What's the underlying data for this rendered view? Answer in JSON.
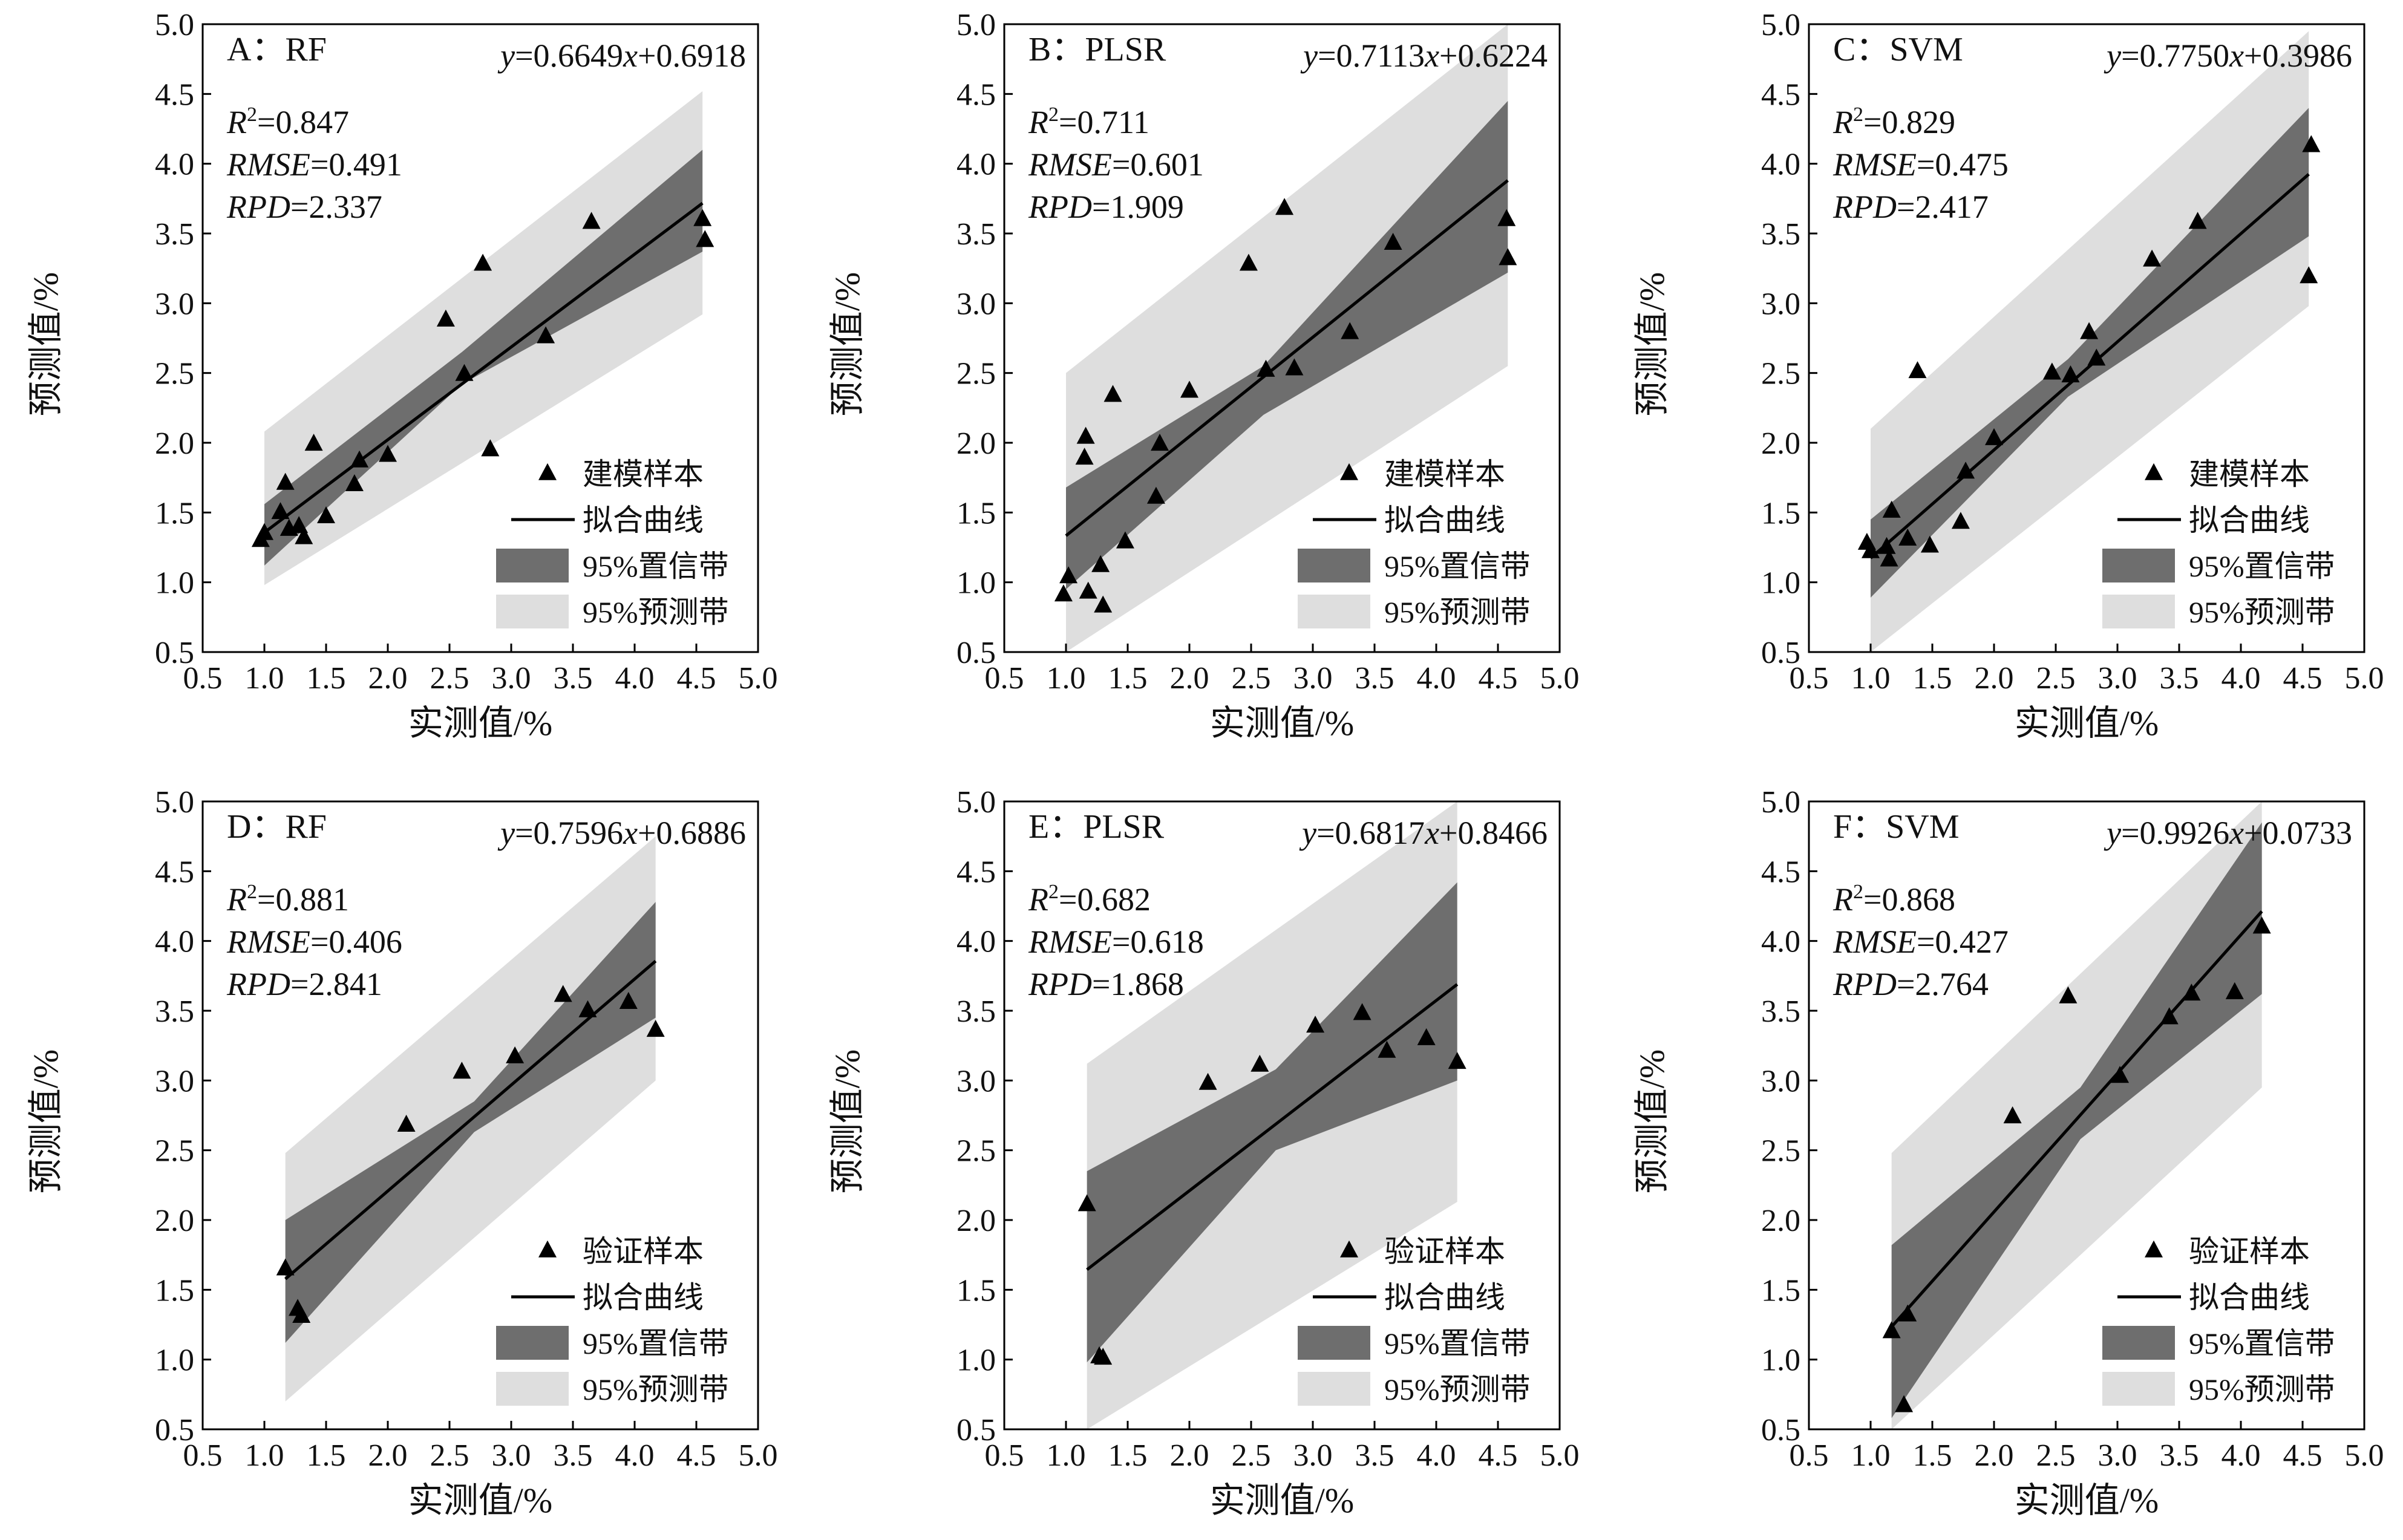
{
  "common": {
    "xlabel": "实测值/%",
    "ylabel": "预测值/%",
    "xlim": [
      0.5,
      5.0
    ],
    "ylim": [
      0.5,
      5.0
    ],
    "ticks": [
      "0.5",
      "1.0",
      "1.5",
      "2.0",
      "2.5",
      "3.0",
      "3.5",
      "4.0",
      "4.5",
      "5.0"
    ],
    "legend_train": [
      "建模样本",
      "拟合曲线",
      "95%置信带",
      "95%预测带"
    ],
    "legend_valid": [
      "验证样本",
      "拟合曲线",
      "95%置信带",
      "95%预测带"
    ],
    "colors": {
      "prediction_band": "#dedede",
      "confidence_band": "#6e6e6e",
      "marker": "#000000",
      "line": "#000000"
    },
    "marker": "triangle"
  },
  "chart_data": [
    {
      "type": "scatter",
      "panel": "A",
      "title": "A：RF",
      "equation": {
        "y": "y",
        "mid": "=0.6649",
        "x": "x",
        "end": "+0.6918"
      },
      "stats": {
        "r2": "=0.847",
        "rmse": "=0.491",
        "rpd": "=2.337"
      },
      "slope": 0.6649,
      "intercept": 0.6918,
      "fit_range": [
        1.0,
        4.55
      ],
      "conf_band": {
        "x": [
          1.0,
          2.6,
          4.55
        ],
        "lower": [
          1.12,
          2.42,
          3.37
        ],
        "upper": [
          1.56,
          2.65,
          4.1
        ]
      },
      "pred_band": {
        "x": [
          1.0,
          4.55
        ],
        "lower": [
          0.98,
          2.92
        ],
        "upper": [
          2.08,
          4.52
        ]
      },
      "x": [
        0.97,
        1.0,
        1.13,
        1.17,
        1.2,
        1.28,
        1.32,
        1.4,
        1.5,
        1.73,
        1.77,
        2.0,
        2.47,
        2.62,
        2.77,
        2.83,
        3.28,
        3.65,
        4.55,
        4.57
      ],
      "y": [
        1.3,
        1.35,
        1.5,
        1.71,
        1.38,
        1.4,
        1.32,
        1.99,
        1.47,
        1.7,
        1.87,
        1.91,
        2.88,
        2.49,
        3.28,
        1.95,
        2.76,
        3.58,
        3.6,
        3.45
      ],
      "legend": "legend_train"
    },
    {
      "type": "scatter",
      "panel": "B",
      "title": "B：PLSR",
      "equation": {
        "y": "y",
        "mid": "=0.7113",
        "x": "x",
        "end": "+0.6224"
      },
      "stats": {
        "r2": "=0.711",
        "rmse": "=0.601",
        "rpd": "=1.909"
      },
      "slope": 0.7113,
      "intercept": 0.6224,
      "fit_range": [
        1.0,
        4.58
      ],
      "conf_band": {
        "x": [
          1.0,
          2.6,
          4.58
        ],
        "lower": [
          0.95,
          2.2,
          3.22
        ],
        "upper": [
          1.68,
          2.55,
          4.45
        ]
      },
      "pred_band": {
        "x": [
          1.0,
          4.58
        ],
        "lower": [
          0.5,
          2.55
        ],
        "upper": [
          2.5,
          5.0
        ]
      },
      "x": [
        0.98,
        1.02,
        1.15,
        1.16,
        1.18,
        1.28,
        1.3,
        1.38,
        1.48,
        1.73,
        1.76,
        2.0,
        2.48,
        2.62,
        2.77,
        2.85,
        3.3,
        3.65,
        4.57,
        4.58
      ],
      "y": [
        0.91,
        1.04,
        1.89,
        2.04,
        0.93,
        1.12,
        0.83,
        2.34,
        1.29,
        1.61,
        1.99,
        2.37,
        3.28,
        2.52,
        3.68,
        2.53,
        2.79,
        3.43,
        3.6,
        3.32
      ],
      "legend": "legend_train"
    },
    {
      "type": "scatter",
      "panel": "C",
      "title": "C：SVM",
      "equation": {
        "y": "y",
        "mid": "=0.7750",
        "x": "x",
        "end": "+0.3986"
      },
      "stats": {
        "r2": "=0.829",
        "rmse": "=0.475",
        "rpd": "=2.417"
      },
      "slope": 0.775,
      "intercept": 0.3986,
      "fit_range": [
        1.0,
        4.55
      ],
      "conf_band": {
        "x": [
          1.0,
          2.6,
          4.55
        ],
        "lower": [
          0.89,
          2.33,
          3.48
        ],
        "upper": [
          1.45,
          2.6,
          4.4
        ]
      },
      "pred_band": {
        "x": [
          1.0,
          4.55
        ],
        "lower": [
          0.5,
          2.98
        ],
        "upper": [
          2.1,
          4.95
        ]
      },
      "x": [
        0.97,
        1.0,
        1.13,
        1.15,
        1.17,
        1.3,
        1.38,
        1.48,
        1.73,
        1.77,
        2.0,
        2.47,
        2.62,
        2.77,
        2.83,
        3.28,
        3.65,
        4.55,
        4.57
      ],
      "y": [
        1.28,
        1.22,
        1.25,
        1.16,
        1.51,
        1.31,
        2.51,
        1.26,
        1.43,
        1.79,
        2.03,
        2.5,
        2.48,
        2.79,
        2.6,
        3.31,
        3.58,
        3.19,
        4.13
      ],
      "legend": "legend_train"
    },
    {
      "type": "scatter",
      "panel": "D",
      "title": "D：RF",
      "equation": {
        "y": "y",
        "mid": "=0.7596",
        "x": "x",
        "end": "+0.6886"
      },
      "stats": {
        "r2": "=0.881",
        "rmse": "=0.406",
        "rpd": "=2.841"
      },
      "slope": 0.7596,
      "intercept": 0.6886,
      "fit_range": [
        1.17,
        4.17
      ],
      "conf_band": {
        "x": [
          1.17,
          2.7,
          4.17
        ],
        "lower": [
          1.12,
          2.63,
          3.45
        ],
        "upper": [
          2.0,
          2.85,
          4.28
        ]
      },
      "pred_band": {
        "x": [
          1.17,
          4.17
        ],
        "lower": [
          0.7,
          3.0
        ],
        "upper": [
          2.48,
          4.75
        ]
      },
      "x": [
        1.17,
        1.27,
        1.3,
        2.15,
        2.6,
        3.03,
        3.42,
        3.62,
        3.95,
        4.17
      ],
      "y": [
        1.65,
        1.36,
        1.31,
        2.68,
        3.06,
        3.17,
        3.61,
        3.5,
        3.56,
        3.36
      ],
      "legend": "legend_valid"
    },
    {
      "type": "scatter",
      "panel": "E",
      "title": "E：PLSR",
      "equation": {
        "y": "y",
        "mid": "=0.6817",
        "x": "x",
        "end": "+0.8466"
      },
      "stats": {
        "r2": "=0.682",
        "rmse": "=0.618",
        "rpd": "=1.868"
      },
      "slope": 0.6817,
      "intercept": 0.8466,
      "fit_range": [
        1.17,
        4.17
      ],
      "conf_band": {
        "x": [
          1.17,
          2.7,
          4.17
        ],
        "lower": [
          0.98,
          2.5,
          3.0
        ],
        "upper": [
          2.35,
          3.08,
          4.42
        ]
      },
      "pred_band": {
        "x": [
          1.17,
          4.17
        ],
        "lower": [
          0.5,
          2.13
        ],
        "upper": [
          3.12,
          5.0
        ]
      },
      "x": [
        1.17,
        1.27,
        1.3,
        2.15,
        2.57,
        3.02,
        3.4,
        3.6,
        3.92,
        4.17
      ],
      "y": [
        2.11,
        1.02,
        1.01,
        2.98,
        3.11,
        3.39,
        3.48,
        3.21,
        3.3,
        3.13
      ],
      "legend": "legend_valid"
    },
    {
      "type": "scatter",
      "panel": "F",
      "title": "F：SVM",
      "equation": {
        "y": "y",
        "mid": "=0.9926",
        "x": "x",
        "end": "+0.0733"
      },
      "stats": {
        "r2": "=0.868",
        "rmse": "=0.427",
        "rpd": "=2.764"
      },
      "slope": 0.9926,
      "intercept": 0.0733,
      "fit_range": [
        1.17,
        4.17
      ],
      "conf_band": {
        "x": [
          1.17,
          2.7,
          4.17
        ],
        "lower": [
          0.58,
          2.58,
          3.62
        ],
        "upper": [
          1.82,
          2.95,
          4.85
        ]
      },
      "pred_band": {
        "x": [
          1.17,
          4.17
        ],
        "lower": [
          0.5,
          2.95
        ],
        "upper": [
          2.48,
          5.0
        ]
      },
      "x": [
        1.17,
        1.27,
        1.3,
        2.15,
        2.6,
        3.02,
        3.42,
        3.6,
        3.95,
        4.17
      ],
      "y": [
        1.2,
        0.67,
        1.32,
        2.74,
        3.6,
        3.03,
        3.45,
        3.62,
        3.63,
        4.1
      ],
      "legend": "legend_valid"
    }
  ]
}
